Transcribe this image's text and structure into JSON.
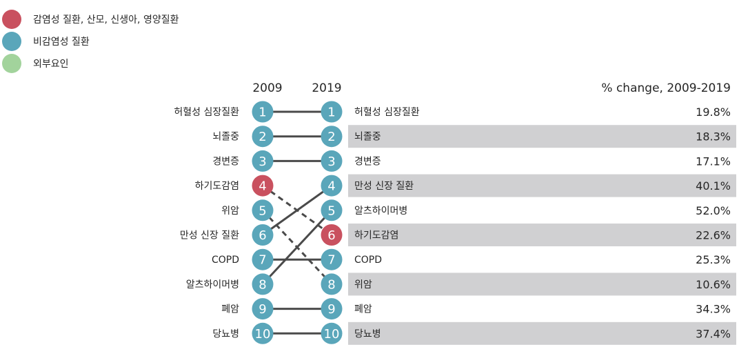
{
  "legend": [
    {
      "label": "감염성 질환, 산모, 신생아, 영양질환",
      "color": "#c9515f"
    },
    {
      "label": "비감염성 질환",
      "color": "#5aa6ba"
    },
    {
      "label": "외부요인",
      "color": "#a2d39c"
    }
  ],
  "colors": {
    "infectious": "#c9515f",
    "noncommunicable": "#5aa6ba",
    "external": "#a2d39c",
    "line": "#4a4a4a",
    "row_band": "#d0d0d2"
  },
  "chart_data": {
    "type": "slope",
    "x": [
      "2009",
      "2019"
    ],
    "change_header": "% change, 2009-2019",
    "left_ranking": [
      {
        "rank": 1,
        "cause": "허혈성 심장질환",
        "group": "noncommunicable"
      },
      {
        "rank": 2,
        "cause": "뇌졸중",
        "group": "noncommunicable"
      },
      {
        "rank": 3,
        "cause": "경변증",
        "group": "noncommunicable"
      },
      {
        "rank": 4,
        "cause": "하기도감염",
        "group": "infectious"
      },
      {
        "rank": 5,
        "cause": "위암",
        "group": "noncommunicable"
      },
      {
        "rank": 6,
        "cause": "만성 신장 질환",
        "group": "noncommunicable"
      },
      {
        "rank": 7,
        "cause": "COPD",
        "group": "noncommunicable"
      },
      {
        "rank": 8,
        "cause": "알츠하이머병",
        "group": "noncommunicable"
      },
      {
        "rank": 9,
        "cause": "폐암",
        "group": "noncommunicable"
      },
      {
        "rank": 10,
        "cause": "당뇨병",
        "group": "noncommunicable"
      }
    ],
    "right_ranking": [
      {
        "rank": 1,
        "cause": "허혈성 심장질환",
        "group": "noncommunicable",
        "change": "19.8%",
        "shaded": false
      },
      {
        "rank": 2,
        "cause": "뇌졸중",
        "group": "noncommunicable",
        "change": "18.3%",
        "shaded": true
      },
      {
        "rank": 3,
        "cause": "경변증",
        "group": "noncommunicable",
        "change": "17.1%",
        "shaded": false
      },
      {
        "rank": 4,
        "cause": "만성 신장 질환",
        "group": "noncommunicable",
        "change": "40.1%",
        "shaded": true
      },
      {
        "rank": 5,
        "cause": "알츠하이머병",
        "group": "noncommunicable",
        "change": "52.0%",
        "shaded": false
      },
      {
        "rank": 6,
        "cause": "하기도감염",
        "group": "infectious",
        "change": "22.6%",
        "shaded": true
      },
      {
        "rank": 7,
        "cause": "COPD",
        "group": "noncommunicable",
        "change": "25.3%",
        "shaded": false
      },
      {
        "rank": 8,
        "cause": "위암",
        "group": "noncommunicable",
        "change": "10.6%",
        "shaded": true
      },
      {
        "rank": 9,
        "cause": "폐암",
        "group": "noncommunicable",
        "change": "34.3%",
        "shaded": false
      },
      {
        "rank": 10,
        "cause": "당뇨병",
        "group": "noncommunicable",
        "change": "37.4%",
        "shaded": true
      }
    ],
    "connections": [
      {
        "from": 1,
        "to": 1,
        "style": "solid"
      },
      {
        "from": 2,
        "to": 2,
        "style": "solid"
      },
      {
        "from": 3,
        "to": 3,
        "style": "solid"
      },
      {
        "from": 4,
        "to": 6,
        "style": "dashed"
      },
      {
        "from": 5,
        "to": 8,
        "style": "dashed"
      },
      {
        "from": 6,
        "to": 4,
        "style": "solid"
      },
      {
        "from": 7,
        "to": 7,
        "style": "solid"
      },
      {
        "from": 8,
        "to": 5,
        "style": "solid"
      },
      {
        "from": 9,
        "to": 9,
        "style": "solid"
      },
      {
        "from": 10,
        "to": 10,
        "style": "solid"
      }
    ]
  }
}
